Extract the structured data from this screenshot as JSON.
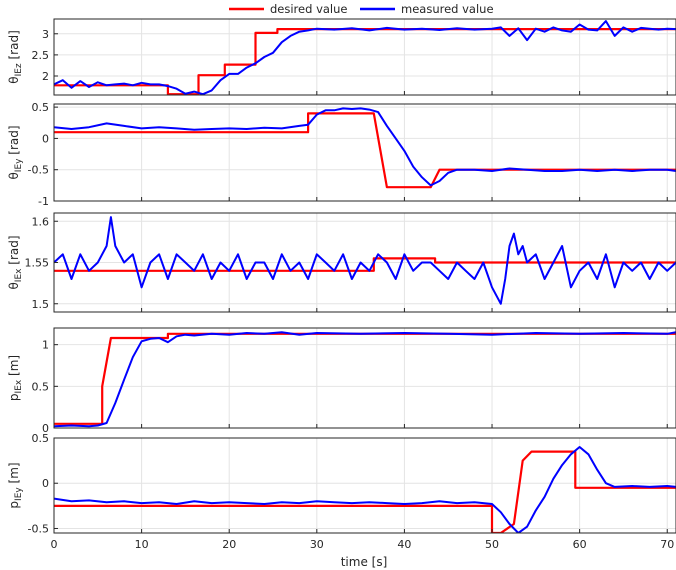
{
  "chart_data": {
    "type": "line",
    "legend": {
      "placement": "top-center",
      "entries": [
        {
          "label": "desired value",
          "color": "#ff0000"
        },
        {
          "label": "measured value",
          "color": "#0000ff"
        }
      ]
    },
    "xlabel": "time [s]",
    "xlim": [
      0,
      71
    ],
    "xticks": [
      0,
      10,
      20,
      30,
      40,
      50,
      60,
      70
    ],
    "grid": true,
    "panels": [
      {
        "ylabel": "θ_IEz [rad]",
        "ylim": [
          1.55,
          3.35
        ],
        "yticks": [
          2,
          2.5,
          3
        ],
        "series": [
          {
            "name": "desired value",
            "color": "#ff0000",
            "x": [
              0,
              13,
              13,
              16.5,
              16.5,
              19.5,
              19.5,
              23,
              23,
              25.5,
              25.5,
              71
            ],
            "y": [
              1.78,
              1.78,
              1.57,
              1.57,
              2.02,
              2.02,
              2.27,
              2.27,
              3.02,
              3.02,
              3.11,
              3.11
            ]
          },
          {
            "name": "measured value",
            "color": "#0000ff",
            "x": [
              0,
              1,
              2,
              3,
              4,
              5,
              6,
              7,
              8,
              9,
              10,
              11,
              12,
              13,
              14,
              15,
              16,
              17,
              18,
              19,
              20,
              21,
              22,
              23,
              24,
              25,
              26,
              27,
              28,
              29,
              30,
              32,
              34,
              36,
              38,
              40,
              42,
              44,
              46,
              48,
              50,
              51,
              52,
              53,
              54,
              55,
              56,
              57,
              58,
              59,
              60,
              61,
              62,
              63,
              64,
              65,
              66,
              67,
              68,
              69,
              70,
              71
            ],
            "y": [
              1.8,
              1.9,
              1.72,
              1.88,
              1.74,
              1.85,
              1.78,
              1.8,
              1.82,
              1.78,
              1.84,
              1.8,
              1.8,
              1.76,
              1.7,
              1.58,
              1.63,
              1.57,
              1.66,
              1.9,
              2.05,
              2.05,
              2.2,
              2.3,
              2.45,
              2.55,
              2.8,
              2.95,
              3.05,
              3.08,
              3.12,
              3.1,
              3.13,
              3.08,
              3.14,
              3.1,
              3.12,
              3.09,
              3.13,
              3.1,
              3.12,
              3.15,
              2.95,
              3.13,
              2.85,
              3.12,
              3.05,
              3.15,
              3.08,
              3.05,
              3.22,
              3.1,
              3.08,
              3.3,
              2.95,
              3.15,
              3.05,
              3.14,
              3.12,
              3.1,
              3.12,
              3.11
            ]
          }
        ]
      },
      {
        "ylabel": "θ_IEy [rad]",
        "ylim": [
          -1,
          0.55
        ],
        "yticks": [
          -1,
          -0.5,
          0,
          0.5
        ],
        "series": [
          {
            "name": "desired value",
            "color": "#ff0000",
            "x": [
              0,
              29,
              29,
              36.5,
              36.5,
              38,
              38,
              43,
              43,
              44,
              44,
              71
            ],
            "y": [
              0.1,
              0.1,
              0.4,
              0.4,
              0.4,
              -0.78,
              -0.78,
              -0.78,
              -0.78,
              -0.5,
              -0.5,
              -0.5
            ]
          },
          {
            "name": "measured value",
            "color": "#0000ff",
            "x": [
              0,
              2,
              4,
              6,
              8,
              10,
              12,
              14,
              16,
              18,
              20,
              22,
              24,
              26,
              28,
              29,
              30,
              31,
              32,
              33,
              34,
              35,
              36,
              37,
              38,
              39,
              40,
              41,
              42,
              43,
              44,
              45,
              46,
              48,
              50,
              52,
              54,
              56,
              58,
              60,
              62,
              64,
              66,
              68,
              70,
              71
            ],
            "y": [
              0.18,
              0.15,
              0.18,
              0.24,
              0.2,
              0.16,
              0.18,
              0.16,
              0.14,
              0.15,
              0.16,
              0.15,
              0.17,
              0.16,
              0.2,
              0.22,
              0.38,
              0.45,
              0.45,
              0.48,
              0.47,
              0.48,
              0.46,
              0.42,
              0.2,
              0.0,
              -0.2,
              -0.45,
              -0.62,
              -0.75,
              -0.68,
              -0.55,
              -0.5,
              -0.5,
              -0.52,
              -0.48,
              -0.5,
              -0.52,
              -0.52,
              -0.5,
              -0.52,
              -0.5,
              -0.52,
              -0.5,
              -0.5,
              -0.52
            ]
          }
        ]
      },
      {
        "ylabel": "θ_IEx [rad]",
        "ylim": [
          1.49,
          1.61
        ],
        "yticks": [
          1.5,
          1.55,
          1.6
        ],
        "series": [
          {
            "name": "desired value",
            "color": "#ff0000",
            "x": [
              0,
              36.5,
              36.5,
              43.5,
              43.5,
              71
            ],
            "y": [
              1.54,
              1.54,
              1.555,
              1.555,
              1.55,
              1.55
            ]
          },
          {
            "name": "measured value",
            "color": "#0000ff",
            "x": [
              0,
              1,
              2,
              3,
              4,
              5,
              6,
              6.5,
              7,
              8,
              9,
              10,
              11,
              12,
              13,
              14,
              15,
              16,
              17,
              18,
              19,
              20,
              21,
              22,
              23,
              24,
              25,
              26,
              27,
              28,
              29,
              30,
              31,
              32,
              33,
              34,
              35,
              36,
              37,
              38,
              39,
              40,
              41,
              42,
              43,
              44,
              45,
              46,
              47,
              48,
              49,
              50,
              51,
              51.5,
              52,
              52.5,
              53,
              53.5,
              54,
              55,
              56,
              57,
              58,
              59,
              60,
              61,
              62,
              63,
              64,
              65,
              66,
              67,
              68,
              69,
              70,
              71
            ],
            "y": [
              1.55,
              1.56,
              1.53,
              1.56,
              1.54,
              1.55,
              1.57,
              1.605,
              1.57,
              1.55,
              1.56,
              1.52,
              1.55,
              1.56,
              1.53,
              1.56,
              1.55,
              1.54,
              1.56,
              1.53,
              1.55,
              1.54,
              1.56,
              1.53,
              1.55,
              1.55,
              1.53,
              1.56,
              1.54,
              1.55,
              1.53,
              1.56,
              1.55,
              1.54,
              1.56,
              1.53,
              1.55,
              1.54,
              1.56,
              1.55,
              1.53,
              1.56,
              1.54,
              1.55,
              1.55,
              1.54,
              1.53,
              1.55,
              1.54,
              1.53,
              1.55,
              1.52,
              1.5,
              1.53,
              1.57,
              1.585,
              1.56,
              1.57,
              1.55,
              1.56,
              1.53,
              1.55,
              1.57,
              1.52,
              1.54,
              1.55,
              1.53,
              1.56,
              1.52,
              1.55,
              1.54,
              1.55,
              1.53,
              1.55,
              1.54,
              1.55
            ]
          }
        ]
      },
      {
        "ylabel": "p_IEx [m]",
        "ylim": [
          0,
          1.2
        ],
        "yticks": [
          0,
          0.5,
          1
        ],
        "series": [
          {
            "name": "desired value",
            "color": "#ff0000",
            "x": [
              0,
              5.5,
              5.5,
              6.5,
              6.5,
              13,
              13,
              71
            ],
            "y": [
              0.05,
              0.05,
              0.5,
              1.08,
              1.08,
              1.08,
              1.13,
              1.13
            ]
          },
          {
            "name": "measured value",
            "color": "#0000ff",
            "x": [
              0,
              2,
              4,
              5,
              6,
              7,
              8,
              9,
              10,
              11,
              12,
              13,
              14,
              15,
              16,
              18,
              20,
              22,
              24,
              26,
              28,
              30,
              35,
              40,
              45,
              50,
              55,
              60,
              65,
              70,
              71
            ],
            "y": [
              0.02,
              0.03,
              0.02,
              0.03,
              0.06,
              0.3,
              0.58,
              0.85,
              1.04,
              1.07,
              1.08,
              1.03,
              1.1,
              1.12,
              1.11,
              1.13,
              1.12,
              1.14,
              1.13,
              1.15,
              1.12,
              1.14,
              1.13,
              1.14,
              1.13,
              1.12,
              1.14,
              1.13,
              1.14,
              1.13,
              1.15
            ]
          }
        ]
      },
      {
        "ylabel": "p_IEy [m]",
        "ylim": [
          -0.55,
          0.5
        ],
        "yticks": [
          -0.5,
          0,
          0.5
        ],
        "series": [
          {
            "name": "desired value",
            "color": "#ff0000",
            "x": [
              0,
              50,
              50,
              51,
              51,
              52.5,
              52.5,
              53.5,
              53.5,
              54.5,
              54.5,
              59.5,
              59.5,
              71
            ],
            "y": [
              -0.25,
              -0.25,
              -0.55,
              -0.55,
              -0.55,
              -0.45,
              -0.45,
              0.25,
              0.25,
              0.35,
              0.35,
              0.35,
              -0.05,
              -0.05
            ]
          },
          {
            "name": "measured value",
            "color": "#0000ff",
            "x": [
              0,
              2,
              4,
              6,
              8,
              10,
              12,
              14,
              16,
              18,
              20,
              22,
              24,
              26,
              28,
              30,
              32,
              34,
              36,
              38,
              40,
              42,
              44,
              46,
              48,
              50,
              51,
              52,
              53,
              54,
              55,
              56,
              57,
              58,
              59,
              60,
              61,
              62,
              63,
              64,
              66,
              68,
              70,
              71
            ],
            "y": [
              -0.17,
              -0.2,
              -0.19,
              -0.21,
              -0.2,
              -0.22,
              -0.21,
              -0.23,
              -0.2,
              -0.22,
              -0.21,
              -0.22,
              -0.23,
              -0.21,
              -0.22,
              -0.2,
              -0.21,
              -0.22,
              -0.21,
              -0.22,
              -0.23,
              -0.22,
              -0.2,
              -0.22,
              -0.21,
              -0.23,
              -0.32,
              -0.45,
              -0.55,
              -0.48,
              -0.3,
              -0.15,
              0.05,
              0.2,
              0.32,
              0.4,
              0.32,
              0.15,
              0.0,
              -0.04,
              -0.03,
              -0.04,
              -0.03,
              -0.04
            ]
          }
        ]
      }
    ]
  }
}
